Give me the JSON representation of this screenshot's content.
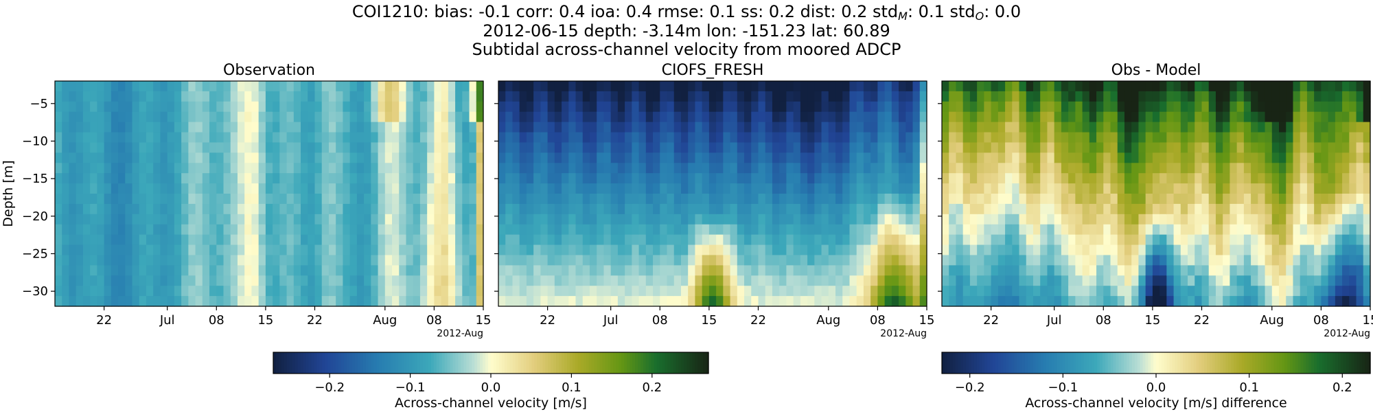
{
  "suptitle": {
    "line1_parts": [
      {
        "t": "COI1210: bias: -0.1  corr: 0.4  ioa: 0.4  rmse: 0.1  ss: 0.2  dist: 0.2  std"
      },
      {
        "t": "M",
        "sub": true
      },
      {
        "t": ": 0.1  std"
      },
      {
        "t": "O",
        "sub": true
      },
      {
        "t": ": 0.0"
      }
    ],
    "line2": "2012-06-15 depth: -3.14m lon: -151.23 lat: 60.89",
    "line3": "Subtidal across-channel velocity from moored ADCP"
  },
  "chart_data": [
    {
      "type": "heatmap",
      "title": "Observation",
      "ylabel": "Depth [m]",
      "x_tick_labels": [
        "22",
        "Jul",
        "08",
        "15",
        "22",
        "Aug",
        "08",
        "15"
      ],
      "x_offset_label": "2012-Aug",
      "x_range": [
        "2012-06-15",
        "2012-08-15"
      ],
      "y_tick_labels": [
        "−5",
        "−10",
        "−15",
        "−20",
        "−25",
        "−30"
      ],
      "y_range": [
        -32,
        -2
      ],
      "colormap": "delta",
      "value_range": [
        -0.27,
        0.27
      ],
      "field": "mostly weakly negative (-0.05 to -0.12 m/s) across all depths; near-zero bands mid-July, late July and early-mid August; slightly positive patches near surface around Aug 1 and near bottom around Aug 7-14"
    },
    {
      "type": "heatmap",
      "title": "CIOFS_FRESH",
      "x_tick_labels": [
        "22",
        "Jul",
        "08",
        "15",
        "22",
        "Aug",
        "08",
        "15"
      ],
      "x_offset_label": "2012-Aug",
      "x_range": [
        "2012-06-15",
        "2012-08-15"
      ],
      "y_tick_labels": [
        "−5",
        "−10",
        "−15",
        "−20",
        "−25",
        "−30"
      ],
      "y_range": [
        -32,
        -2
      ],
      "colormap": "delta",
      "value_range": [
        -0.27,
        0.27
      ],
      "field": "strongly negative near surface (about -0.2 to -0.27 m/s at -2 to -8 m), weakening with depth to about -0.05 m/s; positive bottom lobes (+0.05 to +0.15 m/s) around Jul 12-16 and Aug 8-14"
    },
    {
      "type": "heatmap",
      "title": "Obs - Model",
      "x_tick_labels": [
        "22",
        "Jul",
        "08",
        "15",
        "22",
        "Aug",
        "08",
        "15"
      ],
      "x_offset_label": "2012-Aug",
      "x_range": [
        "2012-06-15",
        "2012-08-15"
      ],
      "y_tick_labels": [
        "−5",
        "−10",
        "−15",
        "−20",
        "−25",
        "−30"
      ],
      "y_range": [
        -32,
        -2
      ],
      "colormap": "delta",
      "value_range": [
        -0.23,
        0.23
      ],
      "field": "positive difference near surface (+0.1 to +0.23 m/s), decreasing with depth to near zero; negative patches near bottom around Jul 12-16 and Aug 8-14"
    }
  ],
  "colorbars": [
    {
      "label": "Across-channel velocity [m/s]",
      "range": [
        -0.27,
        0.27
      ],
      "ticks": [
        -0.2,
        -0.1,
        0.0,
        0.1,
        0.2
      ],
      "tick_labels": [
        "−0.2",
        "−0.1",
        "0.0",
        "0.1",
        "0.2"
      ]
    },
    {
      "label": "Across-channel velocity [m/s] difference",
      "range": [
        -0.23,
        0.23
      ],
      "ticks": [
        -0.2,
        -0.1,
        0.0,
        0.1,
        0.2
      ],
      "tick_labels": [
        "−0.2",
        "−0.1",
        "0.0",
        "0.1",
        "0.2"
      ]
    }
  ]
}
